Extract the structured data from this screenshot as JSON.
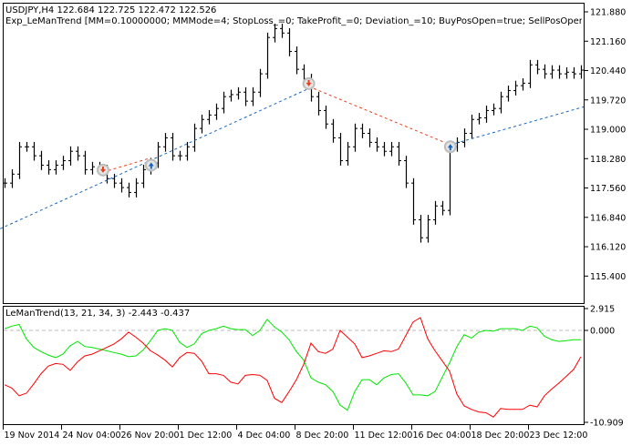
{
  "header": {
    "symbol_line": "USDJPY,H4  122.684 122.725 122.472 122.526",
    "expert_line": "Exp_LeManTrend [MM=0.10000000; MMMode=4; StopLoss_=0; TakeProfit_=0; Deviation_=10; BuyPosOpen=true; SellPosOpen=true; BuyPosClose=true"
  },
  "indicator": {
    "label": "LeManTrend(13, 21, 34, 3) -2.443 -0.437"
  },
  "colors": {
    "bars": "#000000",
    "green_line": "#00e600",
    "red_line": "#ff0000",
    "buy": "#1565c0",
    "sell": "#e8401c",
    "zero": "#bbbbbb"
  },
  "chart_data": [
    {
      "type": "ohlc-bar",
      "symbol": "USDJPY",
      "timeframe": "H4",
      "ylim": [
        115.2,
        122.1
      ],
      "y_ticks": [
        "121.880",
        "121.160",
        "120.440",
        "119.720",
        "119.000",
        "118.280",
        "117.560",
        "116.840",
        "116.120",
        "115.400"
      ],
      "x_tick_labels": [
        "19 Nov 2014",
        "24 Nov 04:00",
        "26 Nov 20:00",
        "1 Dec 12:00",
        "4 Dec 04:00",
        "8 Dec 20:00",
        "11 Dec 12:00",
        "16 Dec 04:00",
        "18 Dec 20:00",
        "23 Dec 12:00"
      ],
      "close": [
        117.68,
        117.9,
        118.57,
        118.57,
        118.35,
        118.12,
        118.01,
        118.12,
        118.23,
        118.46,
        118.35,
        118.01,
        118.08,
        118.01,
        117.79,
        117.68,
        117.57,
        117.45,
        117.68,
        118.01,
        118.17,
        118.57,
        118.79,
        118.35,
        118.35,
        118.57,
        119.02,
        119.24,
        119.35,
        119.51,
        119.8,
        119.85,
        119.91,
        119.69,
        119.91,
        120.36,
        121.25,
        121.47,
        121.36,
        120.91,
        120.47,
        120.24,
        119.8,
        119.46,
        119.13,
        118.79,
        118.23,
        118.57,
        119.02,
        118.9,
        118.68,
        118.57,
        118.46,
        118.57,
        118.23,
        117.68,
        116.78,
        116.34,
        116.78,
        117.12,
        117.01,
        118.57,
        118.68,
        118.9,
        119.24,
        119.28,
        119.46,
        119.51,
        119.8,
        119.95,
        120.07,
        120.13,
        120.58,
        120.47,
        120.36,
        120.45,
        120.36,
        120.4,
        120.36,
        120.45
      ],
      "trades": [
        {
          "type": "sell",
          "index": 13.5,
          "price": 118.0
        },
        {
          "type": "buy",
          "index": 20.1,
          "price": 118.12
        },
        {
          "type": "sell",
          "index": 41.7,
          "price": 120.12
        },
        {
          "type": "buy",
          "index": 61.1,
          "price": 118.57
        }
      ],
      "trend_lines": [
        {
          "color": "buy",
          "from": [
            -0.6,
            116.56
          ],
          "to": [
            41.7,
            120.0
          ]
        },
        {
          "color": "sell",
          "from": [
            13.5,
            117.95
          ],
          "to": [
            20.1,
            118.3
          ]
        },
        {
          "color": "sell",
          "from": [
            41.7,
            120.05
          ],
          "to": [
            61.1,
            118.62
          ]
        },
        {
          "color": "buy",
          "from": [
            61.1,
            118.62
          ],
          "to": [
            79.4,
            119.55
          ]
        }
      ]
    },
    {
      "type": "line",
      "title": "LeManTrend(13, 21, 34, 3)",
      "ylim": [
        -10.909,
        2.915
      ],
      "y_ticks": [
        "2.915",
        "0.000",
        "-10.909"
      ],
      "series": [
        {
          "color": "green_line",
          "values": [
            0.2,
            0.5,
            0.7,
            -1.0,
            -2.0,
            -2.5,
            -2.9,
            -3.2,
            -2.8,
            -1.8,
            -1.3,
            -1.9,
            -2.0,
            -2.2,
            -2.4,
            -2.6,
            -2.8,
            -3.1,
            -3.0,
            -2.3,
            -1.2,
            0.0,
            0.2,
            0.0,
            -1.4,
            -2.0,
            -1.6,
            -0.4,
            0.0,
            0.2,
            0.5,
            0.2,
            0.1,
            0.1,
            -0.6,
            0.0,
            1.3,
            0.4,
            -0.2,
            -1.1,
            -2.5,
            -3.5,
            -5.6,
            -6.1,
            -6.4,
            -7.2,
            -8.8,
            -9.4,
            -7.2,
            -5.8,
            -5.8,
            -6.4,
            -5.6,
            -5.2,
            -5.1,
            -6.2,
            -7.6,
            -7.6,
            -7.7,
            -7.2,
            -5.5,
            -3.8,
            -1.9,
            -0.5,
            -0.9,
            -0.2,
            0.0,
            -0.1,
            0.2,
            0.2,
            0.2,
            0.0,
            0.5,
            0.3,
            -0.7,
            -1.1,
            -1.3,
            -1.2,
            -1.1,
            -1.1
          ]
        },
        {
          "color": "red_line",
          "values": [
            -6.4,
            -6.8,
            -7.7,
            -7.4,
            -6.3,
            -5.1,
            -4.2,
            -3.9,
            -4.0,
            -4.7,
            -3.7,
            -3.0,
            -2.8,
            -2.4,
            -2.0,
            -1.6,
            -1.0,
            -0.2,
            -0.8,
            -1.5,
            -2.4,
            -2.9,
            -3.5,
            -4.3,
            -3.2,
            -2.6,
            -2.7,
            -3.6,
            -5.1,
            -5.1,
            -5.3,
            -6.1,
            -6.3,
            -5.3,
            -5.2,
            -5.3,
            -5.9,
            -8.0,
            -8.5,
            -7.2,
            -5.8,
            -4.0,
            -1.5,
            -2.5,
            -2.7,
            -2.2,
            0.0,
            -0.8,
            -1.6,
            -3.2,
            -3.0,
            -2.7,
            -2.4,
            -2.5,
            -2.2,
            -0.6,
            1.0,
            1.5,
            -1.0,
            -2.4,
            -3.6,
            -4.8,
            -7.5,
            -8.9,
            -9.3,
            -9.6,
            -9.7,
            -10.2,
            -9.2,
            -9.3,
            -9.3,
            -9.3,
            -8.8,
            -9.0,
            -7.7,
            -6.9,
            -6.2,
            -5.4,
            -4.6,
            -3.1
          ]
        }
      ]
    }
  ]
}
